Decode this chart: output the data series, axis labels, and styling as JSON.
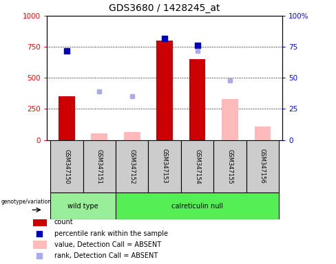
{
  "title": "GDS3680 / 1428245_at",
  "samples": [
    "GSM347150",
    "GSM347151",
    "GSM347152",
    "GSM347153",
    "GSM347154",
    "GSM347155",
    "GSM347156"
  ],
  "ylim_left": [
    0,
    1000
  ],
  "ylim_right": [
    0,
    100
  ],
  "yticks_left": [
    0,
    250,
    500,
    750,
    1000
  ],
  "yticks_right": [
    0,
    25,
    50,
    75,
    100
  ],
  "count_values": [
    350,
    null,
    null,
    800,
    650,
    null,
    null
  ],
  "count_absent_values": [
    null,
    55,
    65,
    null,
    null,
    330,
    110
  ],
  "percentile_rank_values": [
    72,
    null,
    null,
    82,
    76,
    null,
    null
  ],
  "rank_absent_values": [
    null,
    39,
    35,
    null,
    72,
    48,
    null
  ],
  "bar_color_present": "#cc0000",
  "bar_color_absent": "#ffbbbb",
  "dot_color_present": "#0000bb",
  "dot_color_absent": "#aaaaee",
  "wt_color": "#99ee99",
  "cn_color": "#55ee55",
  "sample_box_color": "#cccccc",
  "legend_items": [
    {
      "label": "count",
      "color": "#cc0000",
      "type": "rect"
    },
    {
      "label": "percentile rank within the sample",
      "color": "#0000bb",
      "type": "square"
    },
    {
      "label": "value, Detection Call = ABSENT",
      "color": "#ffbbbb",
      "type": "rect"
    },
    {
      "label": "rank, Detection Call = ABSENT",
      "color": "#aaaaee",
      "type": "square"
    }
  ]
}
